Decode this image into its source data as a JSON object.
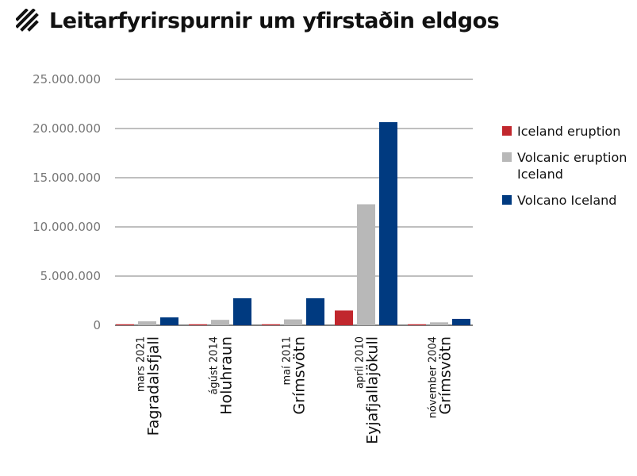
{
  "header": {
    "title": "Leitarfyrirspurnir um yfirstaðin eldgos",
    "icon": "diagonal-stripes-icon"
  },
  "chart_data": {
    "type": "bar",
    "title": "Leitarfyrirspurnir um yfirstaðin eldgos",
    "categories": [
      {
        "date": "mars 2021",
        "name": "Fagradalsfjall"
      },
      {
        "date": "ágúst 2014",
        "name": "Holuhraun"
      },
      {
        "date": "maí 2011",
        "name": "Grímsvötn"
      },
      {
        "date": "apríl 2010",
        "name": "Eyjafjallajökull"
      },
      {
        "date": "nóvember 2004",
        "name": "Grímsvötn"
      }
    ],
    "series": [
      {
        "name": "Iceland eruption",
        "color": "#c1272d",
        "values": [
          100000,
          100000,
          100000,
          1500000,
          100000
        ]
      },
      {
        "name": "Volcanic eruption Iceland",
        "color": "#b8b8b8",
        "values": [
          400000,
          550000,
          600000,
          12300000,
          300000
        ]
      },
      {
        "name": "Volcano Iceland",
        "color": "#003a80",
        "values": [
          800000,
          2750000,
          2750000,
          20650000,
          650000
        ]
      }
    ],
    "yticks": [
      "0",
      "5.000.000",
      "10.000.000",
      "15.000.000",
      "20.000.000",
      "25.000.000"
    ],
    "ylim": [
      0,
      25000000
    ],
    "grid": true,
    "legend_position": "right"
  },
  "legend": {
    "items": [
      {
        "label": "Iceland eruption",
        "color": "#c1272d"
      },
      {
        "label": "Volcanic eruption Iceland",
        "color": "#b8b8b8"
      },
      {
        "label": "Volcano Iceland",
        "color": "#003a80"
      }
    ]
  }
}
